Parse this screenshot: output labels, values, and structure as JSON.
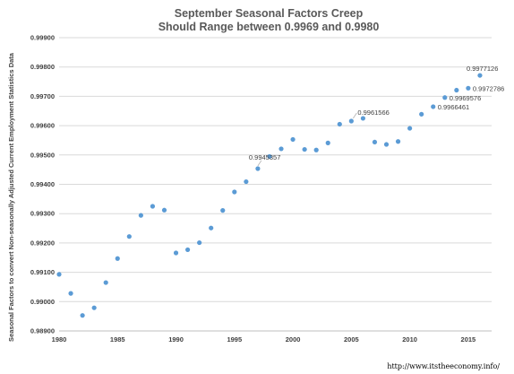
{
  "chart_data": {
    "type": "scatter",
    "title": "September Seasonal Factors Creep",
    "subtitle": "Should Range between 0.9969 and 0.9980",
    "ylabel": "Seasonal Factors to convert Non-seasonally Adjusted Current Employment Statistics Data",
    "xlabel": "",
    "xlim": [
      1980,
      2017
    ],
    "ylim": [
      0.989,
      0.999
    ],
    "x_ticks": [
      "1980",
      "1985",
      "1990",
      "1995",
      "2000",
      "2005",
      "2010",
      "2015"
    ],
    "y_ticks": [
      "0.98900",
      "0.99000",
      "0.99100",
      "0.99200",
      "0.99300",
      "0.99400",
      "0.99500",
      "0.99600",
      "0.99700",
      "0.99800",
      "0.99900"
    ],
    "grid": "horizontal",
    "legend": "none",
    "marker_color": "#5B9BD5",
    "x": [
      1980,
      1981,
      1982,
      1983,
      1984,
      1985,
      1986,
      1987,
      1988,
      1989,
      1990,
      1991,
      1992,
      1993,
      1994,
      1995,
      1996,
      1997,
      1998,
      1999,
      2000,
      2001,
      2002,
      2003,
      2004,
      2005,
      2006,
      2007,
      2008,
      2009,
      2010,
      2011,
      2012,
      2013,
      2014,
      2015,
      2016
    ],
    "values": [
      0.99093,
      0.99028,
      0.98953,
      0.98979,
      0.99065,
      0.99147,
      0.99222,
      0.99294,
      0.99325,
      0.99312,
      0.99166,
      0.99177,
      0.99201,
      0.99251,
      0.99311,
      0.99374,
      0.99409,
      0.9945357,
      0.99495,
      0.99521,
      0.99553,
      0.99519,
      0.99517,
      0.99541,
      0.99605,
      0.9961566,
      0.99625,
      0.99544,
      0.99536,
      0.99546,
      0.99591,
      0.99639,
      0.9966461,
      0.9969576,
      0.99721,
      0.9972786,
      0.9977126
    ],
    "annotations": [
      {
        "x": 1997,
        "y": 0.9945357,
        "text": "0.9945357"
      },
      {
        "x": 2005,
        "y": 0.9961566,
        "text": "0.9961566"
      },
      {
        "x": 2012,
        "y": 0.9966461,
        "text": "0.9966461"
      },
      {
        "x": 2013,
        "y": 0.9969576,
        "text": "0.9969576"
      },
      {
        "x": 2015,
        "y": 0.9972786,
        "text": "0.9972786"
      },
      {
        "x": 2016,
        "y": 0.9977126,
        "text": "0.9977126"
      }
    ]
  },
  "source_text": "http://www.itstheeconomy.info/"
}
